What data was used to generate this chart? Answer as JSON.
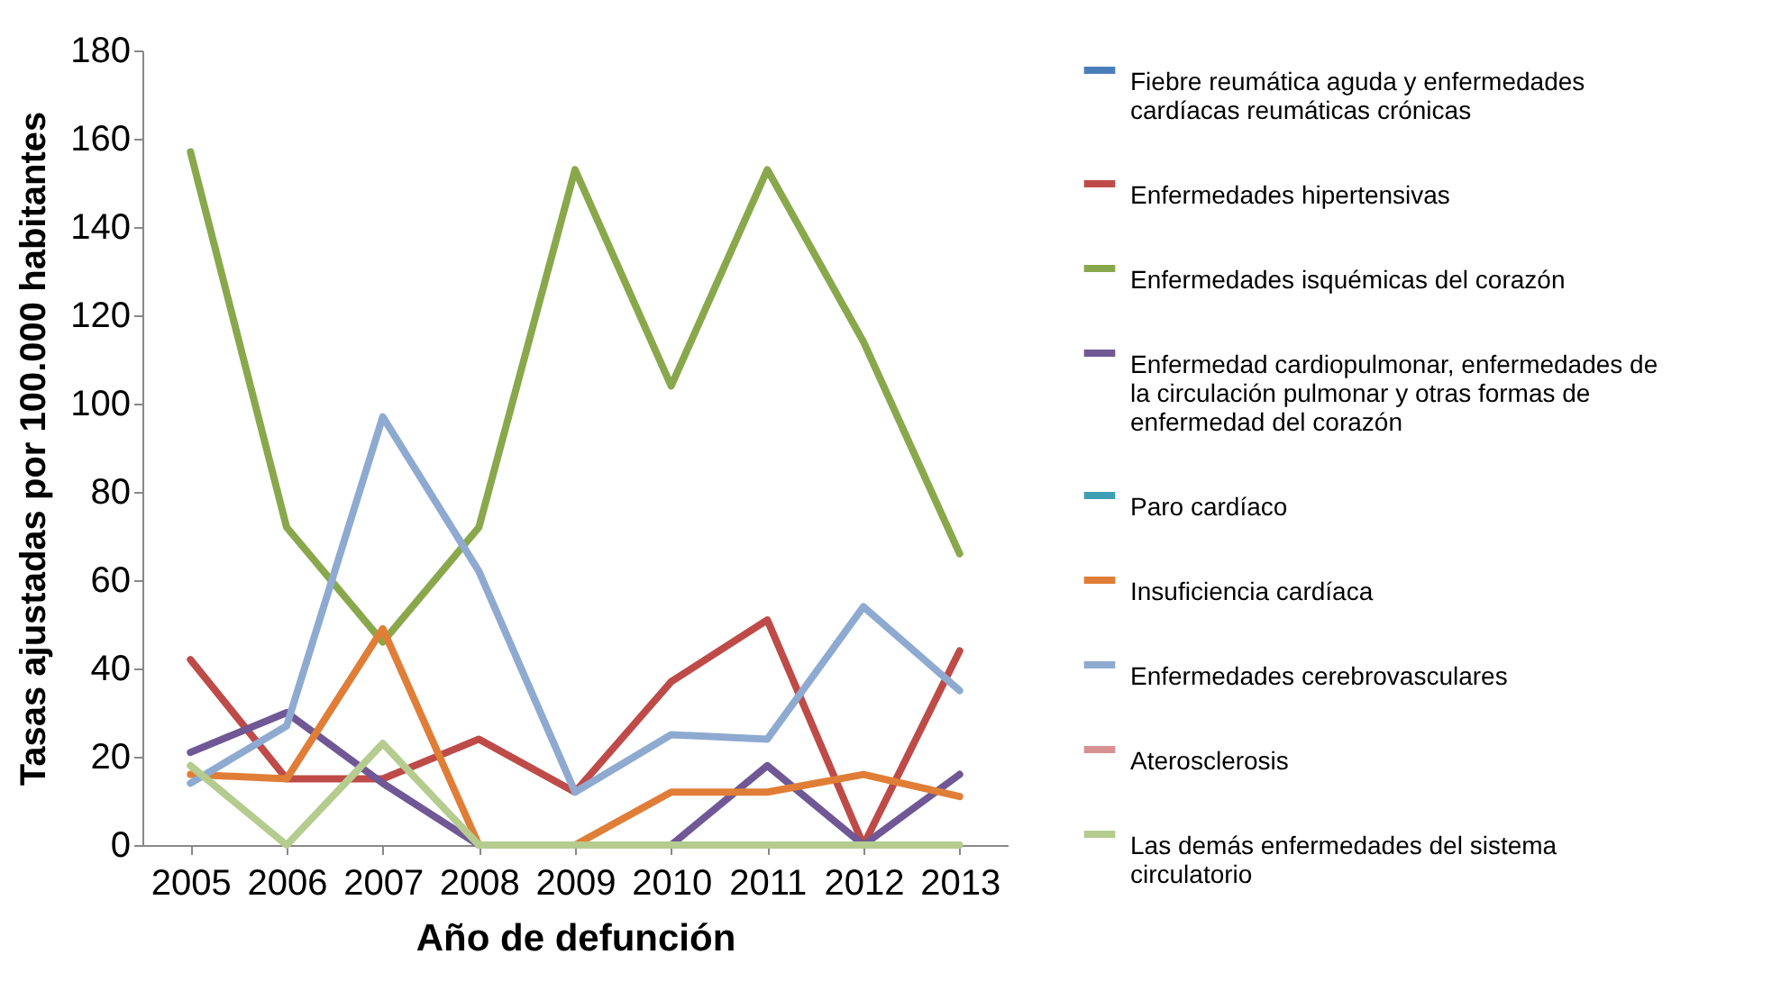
{
  "chart_data": {
    "type": "line",
    "xlabel": "Año de defunción",
    "ylabel": "Tasas ajustadas por 100.000 habitantes",
    "categories": [
      "2005",
      "2006",
      "2007",
      "2008",
      "2009",
      "2010",
      "2011",
      "2012",
      "2013"
    ],
    "ylim": [
      0,
      180
    ],
    "yticks": [
      0,
      20,
      40,
      60,
      80,
      100,
      120,
      140,
      160,
      180
    ],
    "grid": false,
    "legend": "right",
    "line_style": "solid",
    "marker": "none",
    "series": [
      {
        "name": "Fiebre reumática aguda y enfermedades cardíacas reumáticas crónicas",
        "color": "#4a7ebb",
        "values": [
          null,
          null,
          null,
          null,
          null,
          null,
          null,
          null,
          null
        ]
      },
      {
        "name": "Enfermedades hipertensivas",
        "color": "#be4b48",
        "values": [
          42,
          15,
          15,
          24,
          12,
          37,
          51,
          0,
          44
        ]
      },
      {
        "name": "Enfermedades isquémicas del corazón",
        "color": "#89a84c",
        "values": [
          157,
          72,
          46,
          72,
          153,
          104,
          153,
          114,
          66
        ]
      },
      {
        "name": "Enfermedad cardiopulmonar, enfermedades de la circulación pulmonar y otras formas de enfermedad del corazón",
        "color": "#6f5895",
        "values": [
          21,
          30,
          14,
          0,
          0,
          0,
          18,
          0,
          16
        ]
      },
      {
        "name": "Paro cardíaco",
        "color": "#3f9fb5",
        "values": [
          null,
          null,
          null,
          null,
          null,
          null,
          null,
          null,
          null
        ]
      },
      {
        "name": "Insuficiencia cardíaca",
        "color": "#e07e37",
        "values": [
          16,
          15,
          49,
          0,
          0,
          12,
          12,
          16,
          11
        ]
      },
      {
        "name": "Enfermedades cerebrovasculares",
        "color": "#8eaad0",
        "values": [
          14,
          27,
          97,
          62,
          12,
          25,
          24,
          54,
          35
        ]
      },
      {
        "name": "Aterosclerosis",
        "color": "#d69190",
        "values": [
          null,
          null,
          null,
          null,
          null,
          null,
          null,
          null,
          null
        ]
      },
      {
        "name": "Las demás enfermedades del sistema circulatorio",
        "color": "#b5cc8e",
        "values": [
          18,
          0,
          23,
          0,
          0,
          0,
          0,
          0,
          0
        ]
      }
    ]
  }
}
